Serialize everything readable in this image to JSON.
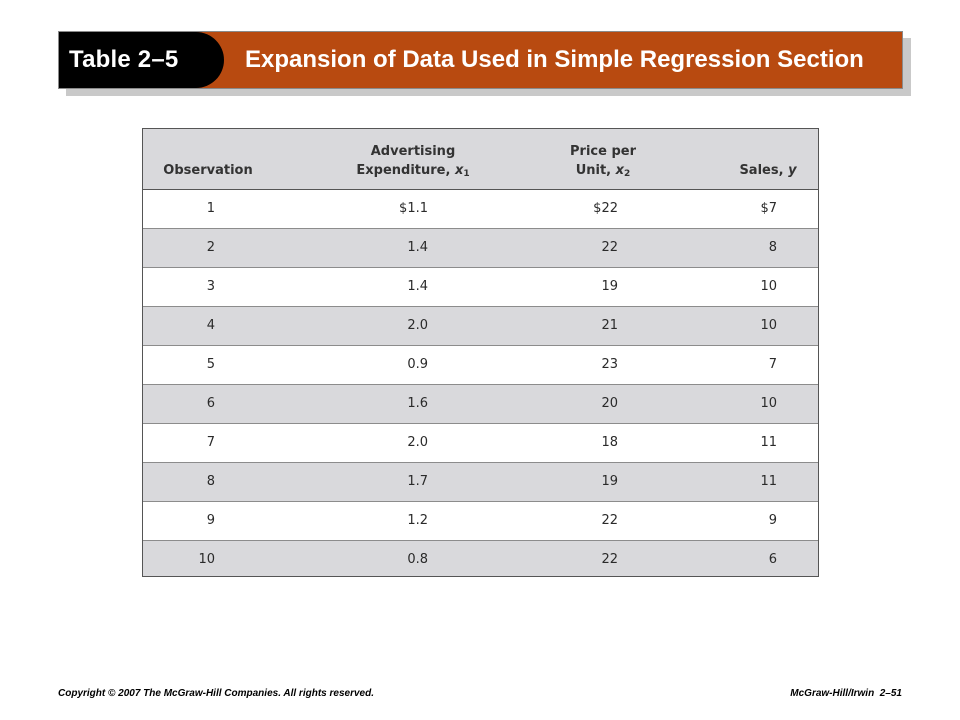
{
  "banner": {
    "table_number": "Table 2–5",
    "title": "Expansion of Data Used in Simple Regression Section"
  },
  "table": {
    "headers": {
      "observation": "Observation",
      "advertising_line1": "Advertising",
      "advertising_line2": "Expenditure, ",
      "advertising_var": "x",
      "advertising_sub": "1",
      "price_line1": "Price per",
      "price_line2": "Unit, ",
      "price_var": "x",
      "price_sub": "2",
      "sales": "Sales, ",
      "sales_var": "y"
    },
    "rows": [
      {
        "observation": "1",
        "advertising": "$1.1",
        "price": "$22",
        "sales": "$7"
      },
      {
        "observation": "2",
        "advertising": "1.4",
        "price": "22",
        "sales": "8"
      },
      {
        "observation": "3",
        "advertising": "1.4",
        "price": "19",
        "sales": "10"
      },
      {
        "observation": "4",
        "advertising": "2.0",
        "price": "21",
        "sales": "10"
      },
      {
        "observation": "5",
        "advertising": "0.9",
        "price": "23",
        "sales": "7"
      },
      {
        "observation": "6",
        "advertising": "1.6",
        "price": "20",
        "sales": "10"
      },
      {
        "observation": "7",
        "advertising": "2.0",
        "price": "18",
        "sales": "11"
      },
      {
        "observation": "8",
        "advertising": "1.7",
        "price": "19",
        "sales": "11"
      },
      {
        "observation": "9",
        "advertising": "1.2",
        "price": "22",
        "sales": "9"
      },
      {
        "observation": "10",
        "advertising": "0.8",
        "price": "22",
        "sales": "6"
      }
    ]
  },
  "footer": {
    "copyright": "Copyright © 2007 The McGraw-Hill Companies. All rights reserved.",
    "publisher_page": "McGraw-Hill/Irwin  2–51"
  },
  "colors": {
    "banner_orange": "#b84a10",
    "banner_tab": "#000000",
    "row_shade": "#d9d9dc"
  }
}
